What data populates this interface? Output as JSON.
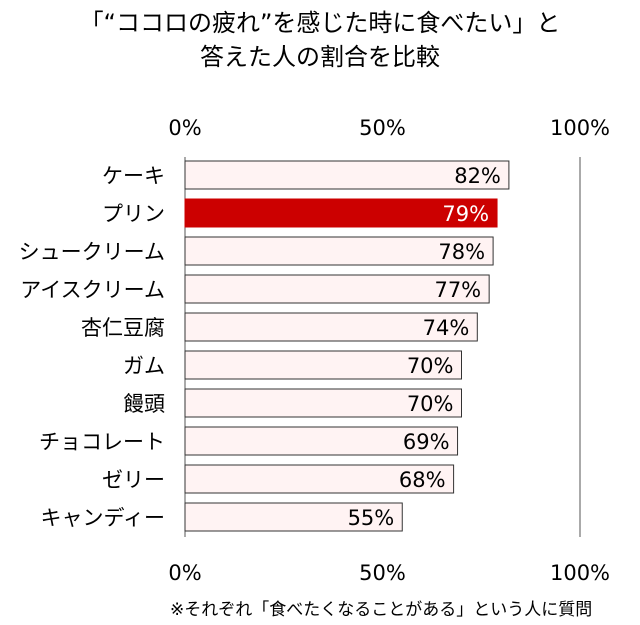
{
  "title_lines": [
    "「“ココロの疲れ”を感じた時に食べたい」と",
    "答えた人の割合を比較"
  ],
  "footnote": "※それぞれ「食べたくなることがある」という人に質問",
  "colors": {
    "bar_fill": "#fff3f3",
    "bar_stroke": "#333333",
    "highlight_fill": "#cc0000",
    "highlight_text": "#ffffff",
    "axis": "#555555"
  },
  "chart_data": {
    "type": "bar",
    "orientation": "horizontal",
    "categories": [
      "ケーキ",
      "プリン",
      "シュークリーム",
      "アイスクリーム",
      "杏仁豆腐",
      "ガム",
      "饅頭",
      "チョコレート",
      "ゼリー",
      "キャンディー"
    ],
    "values": [
      82,
      79,
      78,
      77,
      74,
      70,
      70,
      69,
      68,
      55
    ],
    "data_labels": [
      "82%",
      "79%",
      "78%",
      "77%",
      "74%",
      "70%",
      "70%",
      "69%",
      "68%",
      "55%"
    ],
    "highlight_category": "プリン",
    "xlim": [
      0,
      100
    ],
    "ticks": [
      0,
      50,
      100
    ],
    "tick_labels": [
      "0%",
      "50%",
      "100%"
    ],
    "tick_labels_position": "top and bottom",
    "grid": false
  }
}
